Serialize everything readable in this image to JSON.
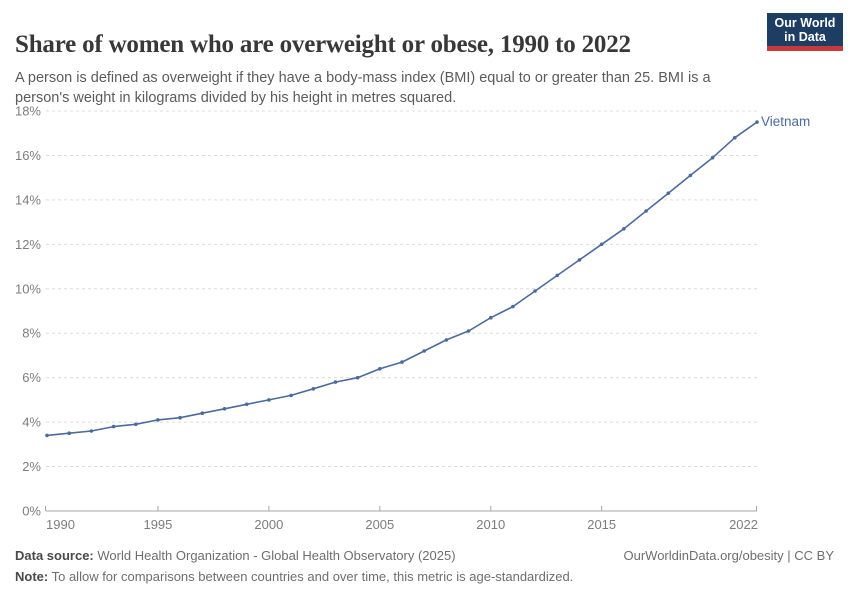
{
  "header": {
    "title": "Share of women who are overweight or obese, 1990 to 2022",
    "subtitle": "A person is defined as overweight if they have a body-mass index (BMI) equal to or greater than 25. BMI is a person's weight in kilograms divided by his height in metres squared.",
    "logo": {
      "line1": "Our World",
      "line2": "in Data",
      "bg_color": "#1d3d63",
      "accent_color": "#c73a3c"
    }
  },
  "chart_data": {
    "type": "line",
    "title": "Share of women who are overweight or obese, 1990 to 2022",
    "xlabel": "",
    "ylabel": "",
    "x": [
      1990,
      1991,
      1992,
      1993,
      1994,
      1995,
      1996,
      1997,
      1998,
      1999,
      2000,
      2001,
      2002,
      2003,
      2004,
      2005,
      2006,
      2007,
      2008,
      2009,
      2010,
      2011,
      2012,
      2013,
      2014,
      2015,
      2016,
      2017,
      2018,
      2019,
      2020,
      2021,
      2022
    ],
    "series": [
      {
        "name": "Vietnam",
        "color": "#4c6a9c",
        "values": [
          3.4,
          3.5,
          3.6,
          3.8,
          3.9,
          4.1,
          4.2,
          4.4,
          4.6,
          4.8,
          5.0,
          5.2,
          5.5,
          5.8,
          6.0,
          6.4,
          6.7,
          7.2,
          7.7,
          8.1,
          8.7,
          9.2,
          9.9,
          10.6,
          11.3,
          12.0,
          12.7,
          13.5,
          14.3,
          15.1,
          15.9,
          16.8,
          17.5
        ]
      }
    ],
    "x_ticks": [
      1990,
      1995,
      2000,
      2005,
      2010,
      2015,
      2022
    ],
    "y_ticks": [
      "0%",
      "2%",
      "4%",
      "6%",
      "8%",
      "10%",
      "12%",
      "14%",
      "16%",
      "18%"
    ],
    "xlim": [
      1990,
      2022
    ],
    "ylim": [
      0,
      18
    ],
    "grid": "horizontal-dashed",
    "legend_position": "end-of-line-label"
  },
  "footer": {
    "datasource_label": "Data source:",
    "datasource_text": "World Health Organization - Global Health Observatory (2025)",
    "link_text": "OurWorldinData.org/obesity | CC BY",
    "note_label": "Note:",
    "note_text": "To allow for comparisons between countries and over time, this metric is age-standardized."
  }
}
